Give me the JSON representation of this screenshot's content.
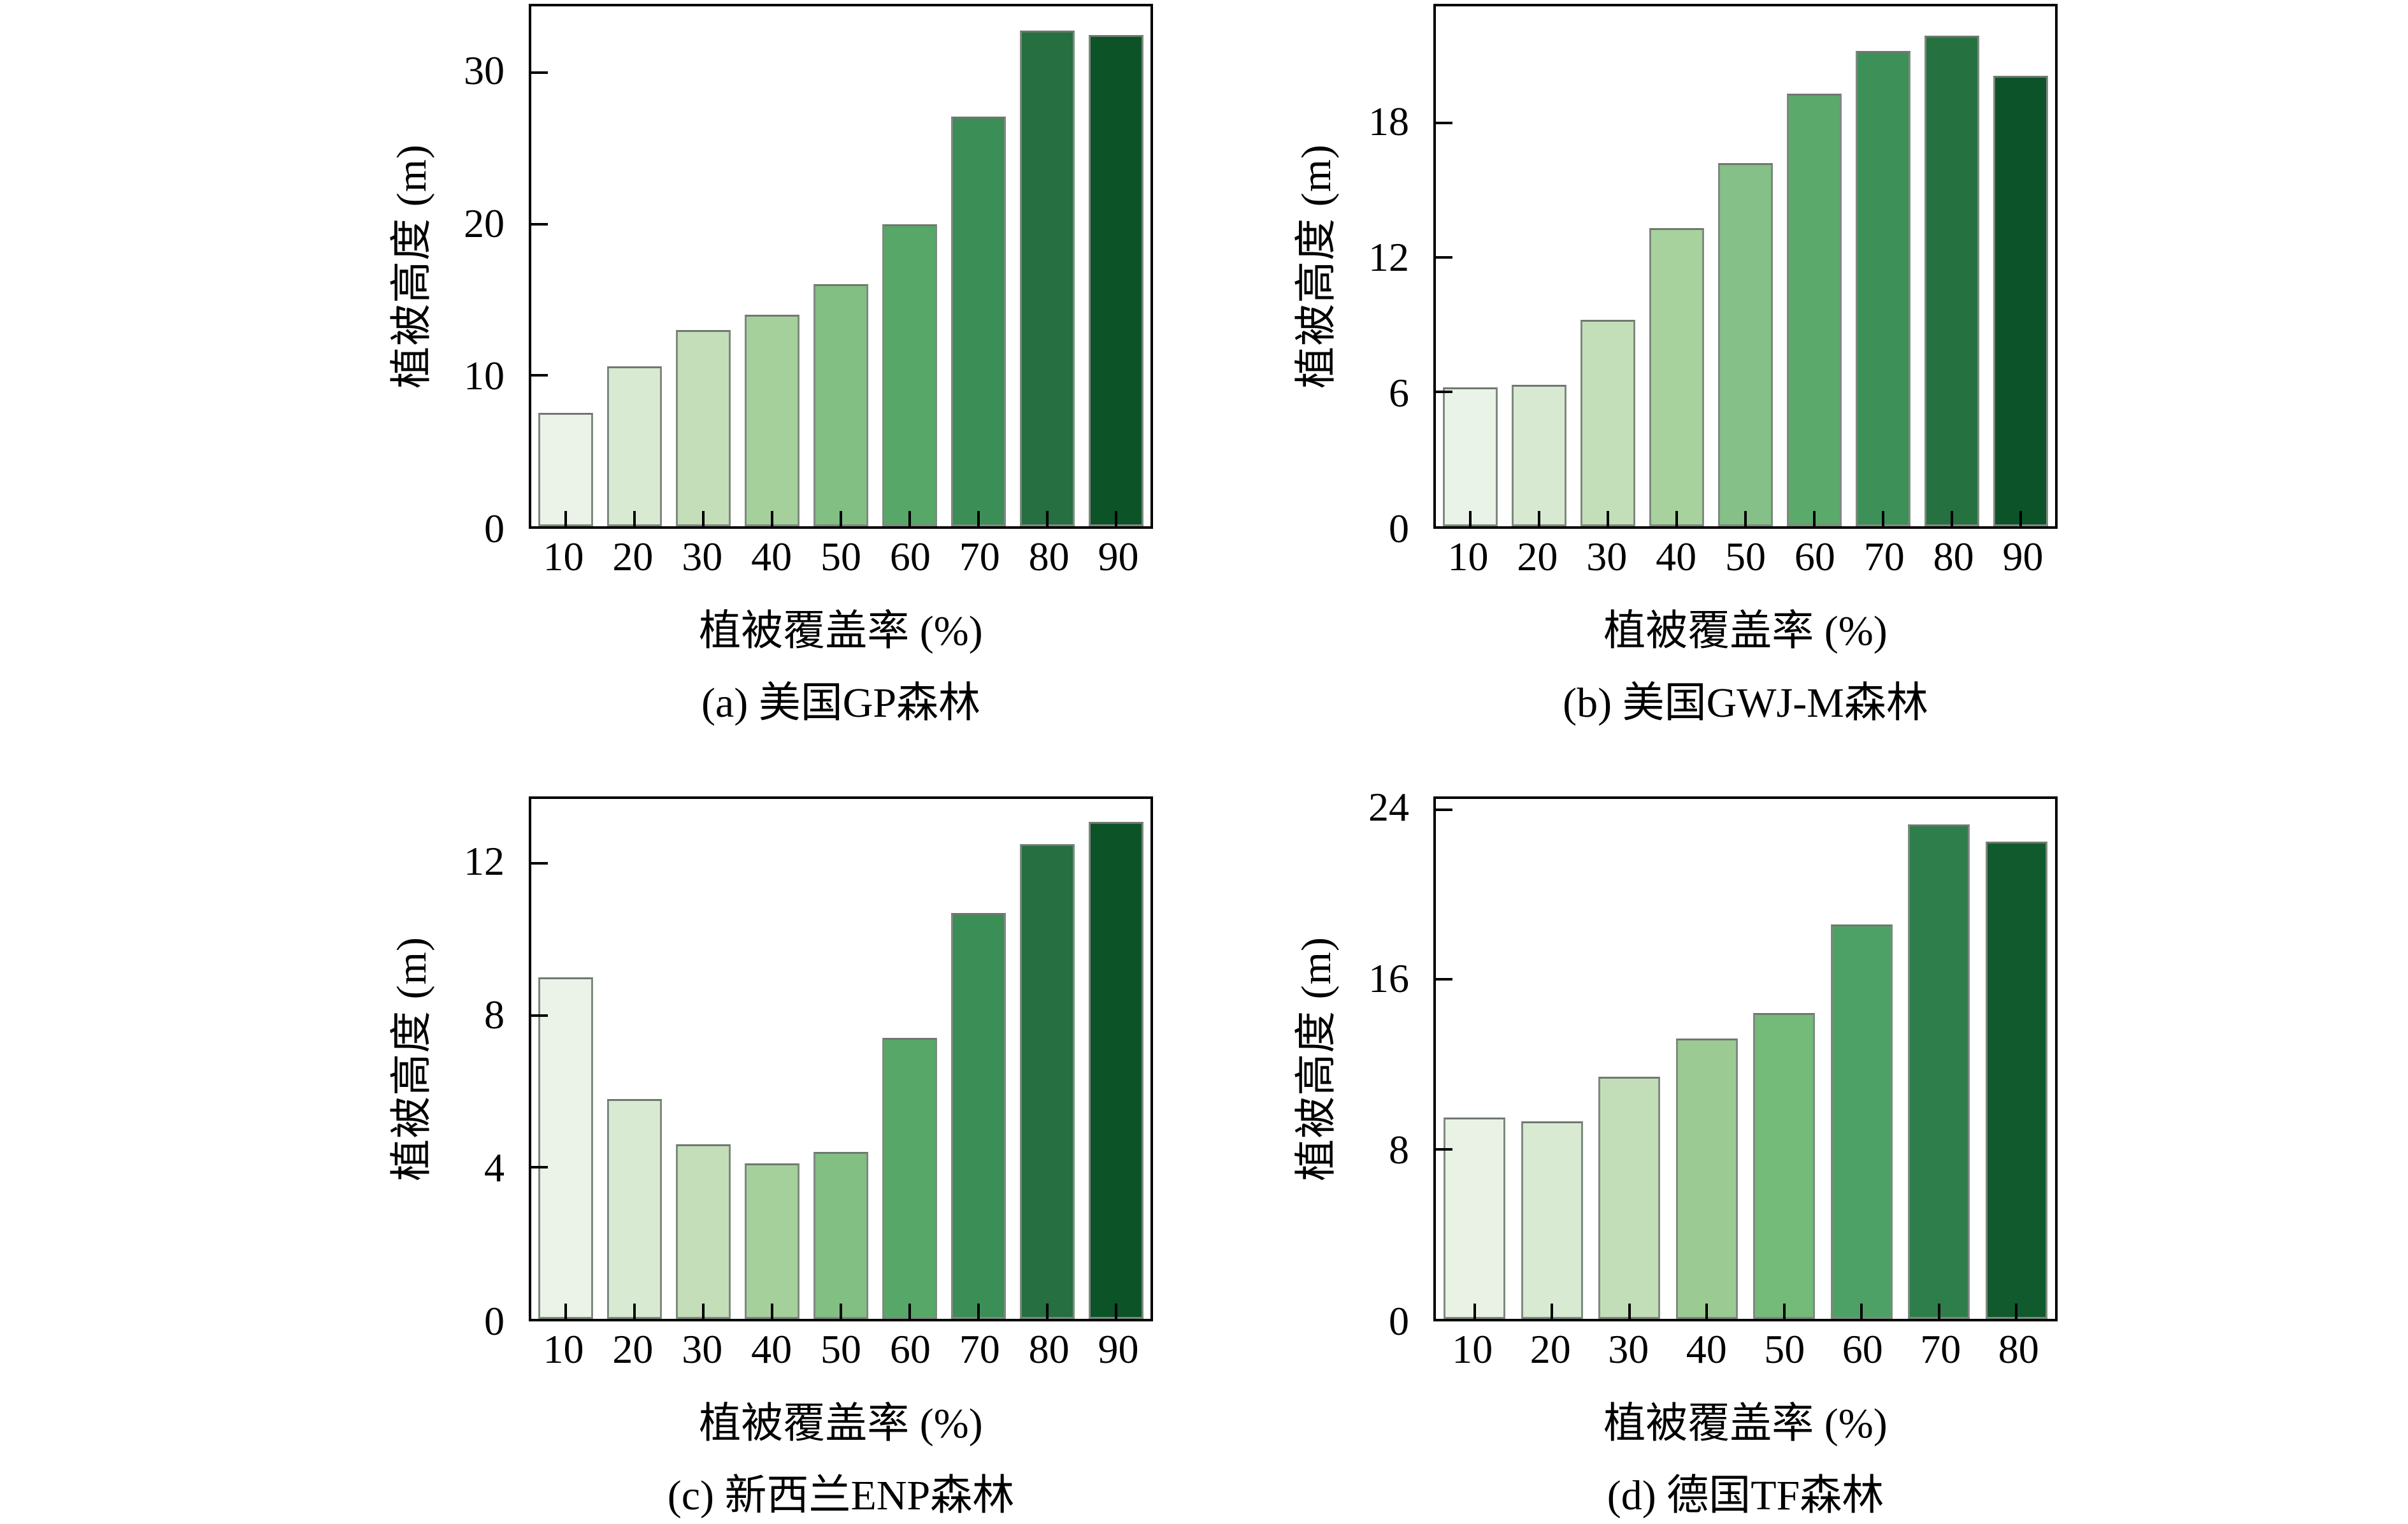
{
  "figure": {
    "background": "#ffffff",
    "axis_color": "#000000",
    "bar_edge_color": "#7e897e"
  },
  "chart_data": [
    {
      "id": "a",
      "type": "bar",
      "title": "(a) 美国GP森林",
      "xlabel": "植被覆盖率 (%)",
      "ylabel": "植被高度 (m)",
      "categories": [
        "10",
        "20",
        "30",
        "40",
        "50",
        "60",
        "70",
        "80",
        "90"
      ],
      "values": [
        7.5,
        10.6,
        13.0,
        14.0,
        16.0,
        20.0,
        27.1,
        32.8,
        32.5
      ],
      "yticks": [
        0,
        10,
        20,
        30
      ],
      "ylim": [
        0,
        34.4
      ],
      "grid": false,
      "legend": "none",
      "colors": [
        "#ebf3e8",
        "#d9ead3",
        "#c3deb9",
        "#a5d09b",
        "#81bf82",
        "#57a768",
        "#3b8e55",
        "#256f40",
        "#0c5328"
      ]
    },
    {
      "id": "b",
      "type": "bar",
      "title": "(b) 美国GWJ-M森林",
      "xlabel": "植被覆盖率 (%)",
      "ylabel": "植被高度 (m)",
      "categories": [
        "10",
        "20",
        "30",
        "40",
        "50",
        "60",
        "70",
        "80",
        "90"
      ],
      "values": [
        6.2,
        6.3,
        9.2,
        13.3,
        16.2,
        19.3,
        21.2,
        21.9,
        20.1
      ],
      "yticks": [
        0,
        6,
        12,
        18
      ],
      "ylim": [
        0,
        23.2
      ],
      "grid": false,
      "legend": "none",
      "colors": [
        "#eaf3e8",
        "#d8e9d2",
        "#c3dfb9",
        "#a7d19d",
        "#84c087",
        "#5ba96b",
        "#3e9059",
        "#267140",
        "#0d5329"
      ]
    },
    {
      "id": "c",
      "type": "bar",
      "title": "(c) 新西兰ENP森林",
      "xlabel": "植被覆盖率 (%)",
      "ylabel": "植被高度 (m)",
      "categories": [
        "10",
        "20",
        "30",
        "40",
        "50",
        "60",
        "70",
        "80",
        "90"
      ],
      "values": [
        9.0,
        5.8,
        4.6,
        4.1,
        4.4,
        7.4,
        10.7,
        12.5,
        13.1
      ],
      "yticks": [
        0,
        4,
        8,
        12
      ],
      "ylim": [
        0,
        13.7
      ],
      "grid": false,
      "legend": "none",
      "colors": [
        "#ebf3e8",
        "#d9ead3",
        "#c3deb9",
        "#a5d09b",
        "#81bf82",
        "#57a768",
        "#3b8e55",
        "#256f40",
        "#0c5328"
      ]
    },
    {
      "id": "d",
      "type": "bar",
      "title": "(d) 德国TF森林",
      "xlabel": "植被覆盖率 (%)",
      "ylabel": "植被高度 (m)",
      "categories": [
        "10",
        "20",
        "30",
        "40",
        "50",
        "60",
        "70",
        "80"
      ],
      "values": [
        9.5,
        9.3,
        11.4,
        13.2,
        14.4,
        18.6,
        23.3,
        22.5
      ],
      "yticks": [
        0,
        8,
        16,
        24
      ],
      "ylim": [
        0,
        24.5
      ],
      "grid": false,
      "legend": "none",
      "colors": [
        "#eaf2e6",
        "#d9ead3",
        "#c2deb8",
        "#9bcb93",
        "#74ba79",
        "#4ea166",
        "#2d7e4a",
        "#115a2d"
      ]
    }
  ]
}
